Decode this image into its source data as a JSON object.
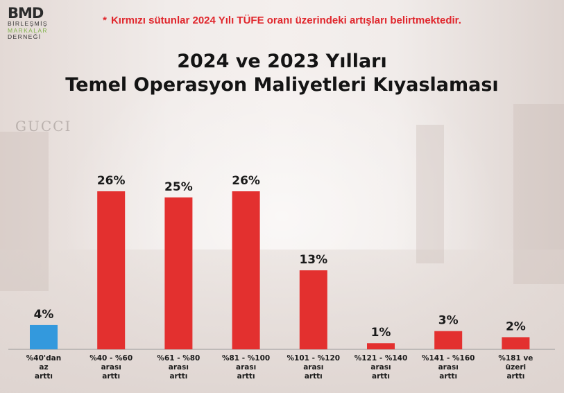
{
  "logo": {
    "name": "BMD",
    "line1": "BİRLEŞMİŞ",
    "line2": "MARKALAR",
    "line3": "DERNEĞİ"
  },
  "note": {
    "star": "*",
    "text": "Kırmızı sütunlar 2024 Yılı TÜFE oranı üzerindeki artışları belirtmektedir."
  },
  "colors": {
    "highlight_bar": "#3399dd",
    "above_inflation_bar": "#e3302f",
    "note_text": "#e0262c"
  },
  "chart_data": {
    "type": "bar",
    "title": "2024 ve 2023 Yılları Temel Operasyon Maliyetleri Kıyaslaması",
    "title_lines": [
      "2024 ve 2023 Yılları",
      "Temel Operasyon Maliyetleri Kıyaslaması"
    ],
    "categories": [
      [
        "%40'dan",
        "az",
        "arttı"
      ],
      [
        "%40 - %60",
        "arası",
        "arttı"
      ],
      [
        "%61 - %80",
        "arası",
        "arttı"
      ],
      [
        "%81 - %100",
        "arası",
        "arttı"
      ],
      [
        "%101 - %120",
        "arası",
        "arttı"
      ],
      [
        "%121 - %140",
        "arası",
        "arttı"
      ],
      [
        "%141 - %160",
        "arası",
        "arttı"
      ],
      [
        "%181 ve",
        "üzeri",
        "arttı"
      ]
    ],
    "values": [
      4,
      26,
      25,
      26,
      13,
      1,
      3,
      2
    ],
    "value_labels": [
      "4%",
      "26%",
      "25%",
      "26%",
      "13%",
      "1%",
      "3%",
      "2%"
    ],
    "bar_colors": [
      "#3399dd",
      "#e3302f",
      "#e3302f",
      "#e3302f",
      "#e3302f",
      "#e3302f",
      "#e3302f",
      "#e3302f"
    ],
    "ylim": [
      0,
      26
    ],
    "grid": false,
    "xlabel": "",
    "ylabel": ""
  }
}
